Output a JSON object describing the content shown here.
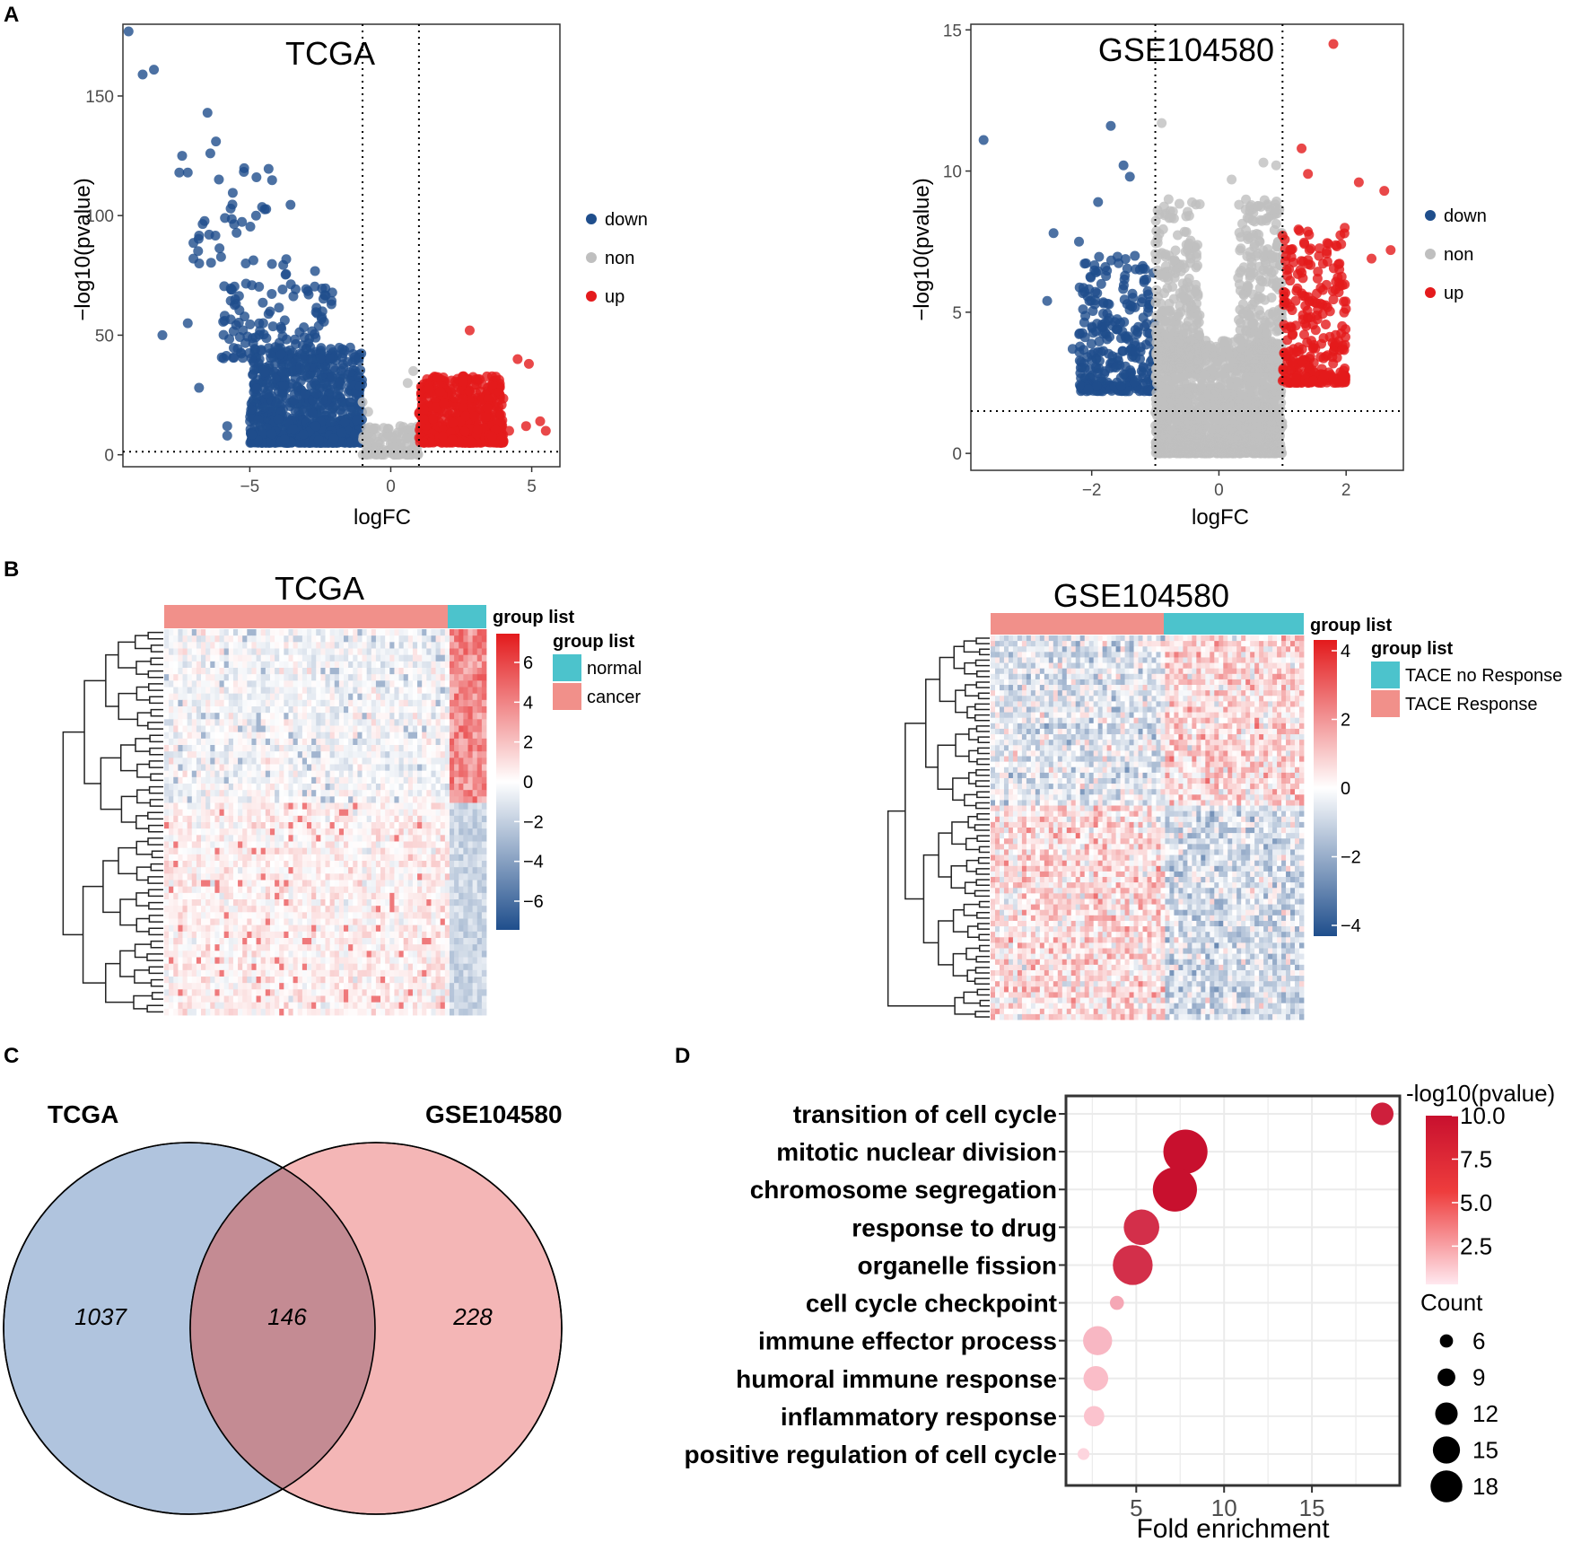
{
  "panels": {
    "A_label": "A",
    "B_label": "B",
    "C_label": "C",
    "D_label": "D"
  },
  "colors": {
    "down": "#1f4e8c",
    "non": "#bfbfbf",
    "up": "#e41a1c",
    "normal": "#4cc3cc",
    "cancer": "#f1908a",
    "venn_left": "#b0c4de",
    "venn_right": "#f4b6b6",
    "venn_overlap": "#c48b93"
  },
  "chart_data": [
    {
      "id": "volcano_tcga",
      "type": "scatter",
      "title": "TCGA",
      "xlabel": "logFC",
      "ylabel": "−log10(pvalue)",
      "xlim": [
        -9.5,
        6
      ],
      "ylim": [
        -5,
        180
      ],
      "xticks": [
        "−5",
        "0",
        "5"
      ],
      "xtick_values": [
        -5,
        0,
        5
      ],
      "yticks": [
        "0",
        "50",
        "100",
        "150"
      ],
      "ytick_values": [
        0,
        50,
        100,
        150
      ],
      "vlines": [
        -1,
        1
      ],
      "hline": 1.3,
      "legend": [
        "down",
        "non",
        "up"
      ],
      "series": [
        {
          "name": "down",
          "clusters": [
            {
              "xrange": [
                -5,
                -1
              ],
              "yrange": [
                5,
                45
              ],
              "n": 900
            },
            {
              "xrange": [
                -6,
                -2
              ],
              "yrange": [
                40,
                80
              ],
              "n": 130
            },
            {
              "xrange": [
                -7,
                -3.5
              ],
              "yrange": [
                80,
                120
              ],
              "n": 35
            }
          ],
          "points": [
            [
              -9.3,
              177
            ],
            [
              -8.4,
              161
            ],
            [
              -8.8,
              159
            ],
            [
              -6.5,
              143
            ],
            [
              -6.2,
              131
            ],
            [
              -6.4,
              126
            ],
            [
              -7.5,
              118
            ],
            [
              -7.2,
              118
            ],
            [
              -7.4,
              125
            ],
            [
              -7.0,
              82
            ],
            [
              -8.1,
              50
            ],
            [
              -7.2,
              55
            ],
            [
              -6.8,
              28
            ],
            [
              -5.8,
              12
            ],
            [
              -5.8,
              8
            ]
          ]
        },
        {
          "name": "non",
          "clusters": [
            {
              "xrange": [
                -1,
                1
              ],
              "yrange": [
                0,
                12
              ],
              "n": 120
            }
          ],
          "points": [
            [
              -1.0,
              22
            ],
            [
              0.6,
              30
            ],
            [
              0.8,
              35
            ],
            [
              -0.8,
              18
            ]
          ]
        },
        {
          "name": "up",
          "clusters": [
            {
              "xrange": [
                1,
                4
              ],
              "yrange": [
                5,
                33
              ],
              "n": 600
            }
          ],
          "points": [
            [
              2.8,
              52
            ],
            [
              4.5,
              40
            ],
            [
              4.9,
              38
            ],
            [
              5.3,
              14
            ],
            [
              4.8,
              12
            ],
            [
              5.5,
              10
            ],
            [
              4.2,
              10
            ]
          ]
        }
      ]
    },
    {
      "id": "volcano_geo",
      "type": "scatter",
      "title": "GSE104580",
      "xlabel": "logFC",
      "ylabel": "−log10(pvalue)",
      "xlim": [
        -3.9,
        2.9
      ],
      "ylim": [
        -0.6,
        15.2
      ],
      "xticks": [
        "−2",
        "0",
        "2"
      ],
      "xtick_values": [
        -2,
        0,
        2
      ],
      "yticks": [
        "0",
        "5",
        "10",
        "15"
      ],
      "ytick_values": [
        0,
        5,
        10,
        15
      ],
      "vlines": [
        -1,
        1
      ],
      "hline": 1.5,
      "legend": [
        "down",
        "non",
        "up"
      ],
      "series": [
        {
          "name": "down",
          "clusters": [
            {
              "xrange": [
                -2.2,
                -1
              ],
              "yrange": [
                2.2,
                7
              ],
              "n": 300
            }
          ],
          "points": [
            [
              -3.7,
              11.1
            ],
            [
              -1.7,
              11.6
            ],
            [
              -1.5,
              10.2
            ],
            [
              -1.4,
              9.8
            ],
            [
              -1.9,
              8.9
            ],
            [
              -2.6,
              7.8
            ],
            [
              -2.7,
              5.4
            ],
            [
              -2.3,
              3.7
            ],
            [
              -2.2,
              7.5
            ]
          ]
        },
        {
          "name": "non",
          "clusters": [
            {
              "xrange": [
                -1,
                1
              ],
              "yrange": [
                0,
                4
              ],
              "n": 1400
            },
            {
              "xrange": [
                -1,
                -0.3
              ],
              "yrange": [
                3,
                9
              ],
              "n": 300
            },
            {
              "xrange": [
                0.3,
                1
              ],
              "yrange": [
                3,
                9
              ],
              "n": 300
            }
          ],
          "points": [
            [
              -0.9,
              11.7
            ],
            [
              0.7,
              10.3
            ],
            [
              0.9,
              10.2
            ],
            [
              0.2,
              9.7
            ]
          ]
        },
        {
          "name": "up",
          "clusters": [
            {
              "xrange": [
                1,
                2.0
              ],
              "yrange": [
                2.5,
                8
              ],
              "n": 280
            }
          ],
          "points": [
            [
              1.8,
              14.5
            ],
            [
              1.3,
              10.8
            ],
            [
              2.2,
              9.6
            ],
            [
              2.6,
              9.3
            ],
            [
              1.4,
              9.9
            ],
            [
              2.7,
              7.2
            ],
            [
              2.4,
              6.9
            ]
          ]
        }
      ]
    },
    {
      "id": "heatmap_tcga",
      "type": "heatmap",
      "title": "TCGA",
      "legend_title_top": "group list",
      "legend_title": "group list",
      "groups": [
        "normal",
        "cancer"
      ],
      "scale_ticks": [
        "6",
        "4",
        "2",
        "0",
        "−2",
        "−4",
        "−6"
      ],
      "scale_values": [
        6,
        4,
        2,
        0,
        -2,
        -4,
        -6
      ]
    },
    {
      "id": "heatmap_geo",
      "type": "heatmap",
      "title": "GSE104580",
      "legend_title_top": "group list",
      "legend_title": "group list",
      "groups": [
        "TACE no Response",
        "TACE Response"
      ],
      "scale_ticks": [
        "4",
        "2",
        "0",
        "−2",
        "−4"
      ],
      "scale_values": [
        4,
        2,
        0,
        -2,
        -4
      ]
    },
    {
      "id": "venn",
      "type": "venn",
      "sets": [
        "TCGA",
        "GSE104580"
      ],
      "only_left": "1037",
      "overlap": "146",
      "only_right": "228"
    },
    {
      "id": "go_dotplot",
      "type": "scatter",
      "xlabel": "Fold enrichment",
      "xlim": [
        1,
        20
      ],
      "xticks": [
        "5",
        "10",
        "15"
      ],
      "xtick_values": [
        5,
        10,
        15
      ],
      "terms": [
        "transition of cell cycle",
        "mitotic nuclear division",
        "chromosome segregation",
        "response to drug",
        "organelle fission",
        "cell cycle checkpoint",
        "immune effector process",
        "humoral immune response",
        "inflammatory response",
        "positive regulation of cell cycle"
      ],
      "fold_enrichment": [
        19.0,
        7.8,
        7.2,
        5.3,
        4.8,
        3.9,
        2.8,
        2.7,
        2.6,
        2.0
      ],
      "neg_log10_p": [
        9.0,
        10.0,
        10.0,
        8.0,
        8.0,
        1.8,
        1.2,
        1.0,
        0.8,
        0.3
      ],
      "count": [
        8,
        18,
        18,
        14,
        16,
        4,
        11,
        9,
        7,
        3
      ],
      "color_legend_title": "-log10(pvalue)",
      "color_ticks": [
        "10.0",
        "7.5",
        "5.0",
        "2.5"
      ],
      "color_tick_values": [
        10.0,
        7.5,
        5.0,
        2.5
      ],
      "size_legend_title": "Count",
      "size_ticks": [
        "6",
        "9",
        "12",
        "15",
        "18"
      ],
      "size_tick_values": [
        6,
        9,
        12,
        15,
        18
      ]
    }
  ]
}
